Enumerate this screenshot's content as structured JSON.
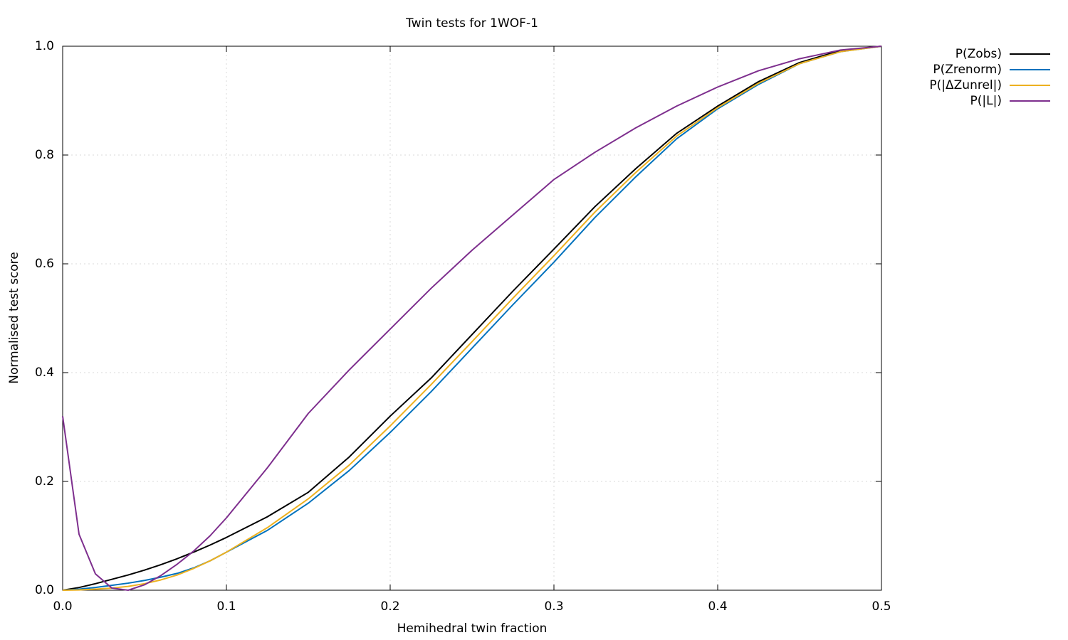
{
  "chart_data": {
    "type": "line",
    "title": "Twin tests for 1WOF-1",
    "x_label": "Hemihedral twin fraction",
    "y_label": "Normalised test score",
    "x": [
      0,
      0.01,
      0.02,
      0.03,
      0.04,
      0.05,
      0.06,
      0.07,
      0.08,
      0.09,
      0.1,
      0.125,
      0.15,
      0.175,
      0.2,
      0.225,
      0.25,
      0.275,
      0.3,
      0.325,
      0.35,
      0.375,
      0.4,
      0.425,
      0.45,
      0.475,
      0.5
    ],
    "series": [
      {
        "name": "P(Zobs)",
        "color": "#000000",
        "values": [
          0,
          0.005,
          0.012,
          0.02,
          0.028,
          0.037,
          0.047,
          0.058,
          0.07,
          0.083,
          0.097,
          0.135,
          0.18,
          0.245,
          0.32,
          0.39,
          0.47,
          0.55,
          0.627,
          0.705,
          0.775,
          0.84,
          0.89,
          0.935,
          0.97,
          0.992,
          1.0
        ]
      },
      {
        "name": "P(Zrenorm)",
        "color": "#0072bd",
        "values": [
          0,
          0.002,
          0.005,
          0.009,
          0.013,
          0.018,
          0.024,
          0.031,
          0.041,
          0.054,
          0.07,
          0.11,
          0.16,
          0.22,
          0.29,
          0.365,
          0.445,
          0.525,
          0.603,
          0.685,
          0.76,
          0.83,
          0.885,
          0.93,
          0.968,
          0.99,
          1.0
        ]
      },
      {
        "name": "P(|ΔZunrel|)",
        "color": "#edb120",
        "values": [
          0,
          0.0005,
          0.002,
          0.004,
          0.007,
          0.012,
          0.019,
          0.028,
          0.04,
          0.054,
          0.07,
          0.115,
          0.168,
          0.23,
          0.302,
          0.378,
          0.457,
          0.537,
          0.615,
          0.695,
          0.768,
          0.835,
          0.887,
          0.932,
          0.968,
          0.99,
          1.0
        ]
      },
      {
        "name": "P(|L|)",
        "color": "#7e2f8e",
        "values": [
          0.32,
          0.103,
          0.03,
          0.004,
          0,
          0.01,
          0.027,
          0.048,
          0.072,
          0.1,
          0.133,
          0.225,
          0.325,
          0.405,
          0.48,
          0.555,
          0.625,
          0.69,
          0.755,
          0.805,
          0.85,
          0.89,
          0.925,
          0.955,
          0.977,
          0.993,
          1.0
        ]
      }
    ],
    "xlim": [
      0,
      0.5
    ],
    "ylim": [
      0,
      1
    ],
    "xticks": [
      {
        "value": 0,
        "label": "0.0"
      },
      0.1,
      0.2,
      0.3,
      0.4,
      0.5
    ],
    "yticks": [
      {
        "value": 0,
        "label": "0.0"
      },
      0.2,
      0.4,
      0.6,
      0.8,
      {
        "value": 1,
        "label": "1.0"
      }
    ],
    "grid": true,
    "legend": "outside-top-right"
  }
}
